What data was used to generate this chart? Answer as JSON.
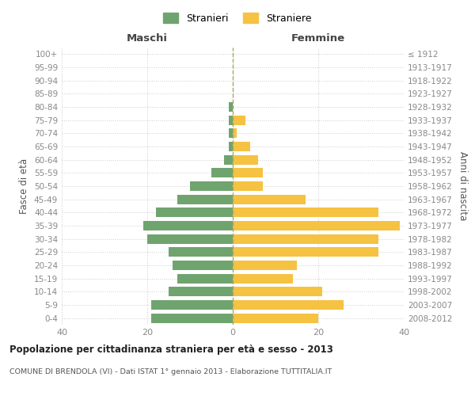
{
  "age_groups": [
    "0-4",
    "5-9",
    "10-14",
    "15-19",
    "20-24",
    "25-29",
    "30-34",
    "35-39",
    "40-44",
    "45-49",
    "50-54",
    "55-59",
    "60-64",
    "65-69",
    "70-74",
    "75-79",
    "80-84",
    "85-89",
    "90-94",
    "95-99",
    "100+"
  ],
  "birth_years": [
    "2008-2012",
    "2003-2007",
    "1998-2002",
    "1993-1997",
    "1988-1992",
    "1983-1987",
    "1978-1982",
    "1973-1977",
    "1968-1972",
    "1963-1967",
    "1958-1962",
    "1953-1957",
    "1948-1952",
    "1943-1947",
    "1938-1942",
    "1933-1937",
    "1928-1932",
    "1923-1927",
    "1918-1922",
    "1913-1917",
    "≤ 1912"
  ],
  "males": [
    19,
    19,
    15,
    13,
    14,
    15,
    20,
    21,
    18,
    13,
    10,
    5,
    2,
    1,
    1,
    1,
    1,
    0,
    0,
    0,
    0
  ],
  "females": [
    20,
    26,
    21,
    14,
    15,
    34,
    34,
    39,
    34,
    17,
    7,
    7,
    6,
    4,
    1,
    3,
    0,
    0,
    0,
    0,
    0
  ],
  "male_color": "#6fa46e",
  "female_color": "#f5c242",
  "grid_color": "#cccccc",
  "axis_label_color": "#888888",
  "title_main": "Popolazione per cittadinanza straniera per età e sesso - 2013",
  "title_sub": "COMUNE DI BRENDOLA (VI) - Dati ISTAT 1° gennaio 2013 - Elaborazione TUTTITALIA.IT",
  "xlabel_left": "Maschi",
  "xlabel_right": "Femmine",
  "ylabel_left": "Fasce di età",
  "ylabel_right": "Anni di nascita",
  "legend_male": "Stranieri",
  "legend_female": "Straniere",
  "xlim": 40,
  "background_color": "#ffffff",
  "bar_height": 0.72
}
